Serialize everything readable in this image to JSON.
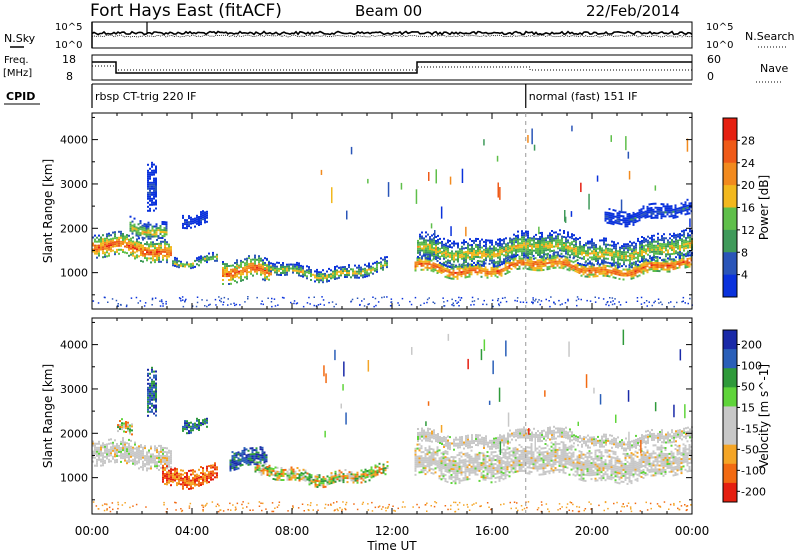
{
  "header": {
    "station": "Fort Hays East (fitACF)",
    "beam": "Beam 00",
    "date": "22/Feb/2014"
  },
  "strip_labels": {
    "nsky": "N.Sky",
    "freq_1": "Freq.",
    "freq_2": "[MHz]",
    "cpid": "CPID",
    "nsearch": "N.Search",
    "nave": "Nave"
  },
  "noise_axis": {
    "left_top": "10^5",
    "left_bottom": "10^0",
    "right_top": "10^5",
    "right_bottom": "10^0"
  },
  "freq_axis": {
    "left_top": "18",
    "left_bottom": "8",
    "right_top": "60",
    "right_bottom": "0"
  },
  "cpid_labels": [
    {
      "text": "rbsp CT-trig 220 IF",
      "start_hour": 0.0
    },
    {
      "text": "normal (fast) 151 IF",
      "start_hour": 17.35
    }
  ],
  "colors": {
    "power": [
      "#0a32dc",
      "#2a55b8",
      "#3f9a5a",
      "#5fbf4a",
      "#f2b81e",
      "#f28a1e",
      "#ef5a18",
      "#e51f10"
    ],
    "velocity": [
      "#e51f10",
      "#f26a12",
      "#f4a526",
      "#c8c8c8",
      "#c8c8c8",
      "#5fd43a",
      "#2f9a3a",
      "#2a5fb8",
      "#1a2aa8"
    ]
  },
  "chart_data": [
    {
      "type": "heatmap",
      "panel": "power",
      "ylabel": "Slant Range [km]",
      "ylim": [
        180,
        4600
      ],
      "xlim": [
        0,
        24
      ],
      "yticks": [
        "1000",
        "2000",
        "3000",
        "4000"
      ],
      "ytick_values": [
        1000,
        2000,
        3000,
        4000
      ],
      "colorbar_label": "Power [dB]",
      "colorbar_ticks": [
        "4",
        "8",
        "12",
        "16",
        "20",
        "24",
        "28"
      ],
      "scatter_echoes": [
        {
          "start_hour": 0.0,
          "end_hour": 3.2,
          "range_center_km": 1550,
          "range_width_km": 500,
          "strength": "strong"
        },
        {
          "start_hour": 1.5,
          "end_hour": 3.0,
          "range_center_km": 2000,
          "range_width_km": 400,
          "strength": "medium"
        },
        {
          "start_hour": 2.2,
          "end_hour": 2.6,
          "range_center_km": 3000,
          "range_width_km": 1100,
          "strength": "weak"
        },
        {
          "start_hour": 3.6,
          "end_hour": 4.6,
          "range_center_km": 2300,
          "range_width_km": 300,
          "strength": "weak"
        },
        {
          "start_hour": 3.2,
          "end_hour": 5.0,
          "range_center_km": 1350,
          "range_width_km": 200,
          "strength": "medium"
        },
        {
          "start_hour": 5.2,
          "end_hour": 7.2,
          "range_center_km": 1000,
          "range_width_km": 500,
          "strength": "strong"
        },
        {
          "start_hour": 6.8,
          "end_hour": 11.8,
          "range_center_km": 1080,
          "range_width_km": 300,
          "strength": "medium"
        },
        {
          "start_hour": 12.9,
          "end_hour": 24.0,
          "range_center_km": 1150,
          "range_width_km": 350,
          "strength": "strong"
        },
        {
          "start_hour": 13.0,
          "end_hour": 24.0,
          "range_center_km": 1550,
          "range_width_km": 600,
          "strength": "medium"
        },
        {
          "start_hour": 20.5,
          "end_hour": 24.0,
          "range_center_km": 2350,
          "range_width_km": 350,
          "strength": "weak"
        }
      ]
    },
    {
      "type": "heatmap",
      "panel": "velocity",
      "ylabel": "Slant Range [km]",
      "xlabel": "Time UT",
      "ylim": [
        180,
        4600
      ],
      "xlim": [
        0,
        24
      ],
      "xticks": [
        "00:00",
        "04:00",
        "08:00",
        "12:00",
        "16:00",
        "20:00",
        "00:00"
      ],
      "xtick_values": [
        0,
        4,
        8,
        12,
        16,
        20,
        24
      ],
      "yticks": [
        "1000",
        "2000",
        "3000",
        "4000"
      ],
      "ytick_values": [
        1000,
        2000,
        3000,
        4000
      ],
      "colorbar_label": "Velocity [m s^-1]",
      "colorbar_ticks": [
        "200",
        "100",
        "50",
        "15",
        "-15",
        "-50",
        "-100",
        "-200"
      ],
      "scatter_echoes": [
        {
          "start_hour": 0.0,
          "end_hour": 3.2,
          "range_center_km": 1500,
          "range_width_km": 550,
          "velocity": "low"
        },
        {
          "start_hour": 1.0,
          "end_hour": 1.6,
          "range_center_km": 2050,
          "range_width_km": 300,
          "velocity": "mixed"
        },
        {
          "start_hour": 2.2,
          "end_hour": 2.6,
          "range_center_km": 3000,
          "range_width_km": 1100,
          "velocity": "positive"
        },
        {
          "start_hour": 3.6,
          "end_hour": 4.6,
          "range_center_km": 2300,
          "range_width_km": 300,
          "velocity": "positive"
        },
        {
          "start_hour": 2.8,
          "end_hour": 5.0,
          "range_center_km": 1100,
          "range_width_km": 450,
          "velocity": "negative"
        },
        {
          "start_hour": 5.5,
          "end_hour": 7.0,
          "range_center_km": 1350,
          "range_width_km": 450,
          "velocity": "positive"
        },
        {
          "start_hour": 6.5,
          "end_hour": 11.8,
          "range_center_km": 1080,
          "range_width_km": 300,
          "velocity": "mixed"
        },
        {
          "start_hour": 12.9,
          "end_hour": 24.0,
          "range_center_km": 1350,
          "range_width_km": 700,
          "velocity": "low"
        },
        {
          "start_hour": 13.0,
          "end_hour": 24.0,
          "range_center_km": 1900,
          "range_width_km": 300,
          "velocity": "low"
        }
      ]
    }
  ]
}
